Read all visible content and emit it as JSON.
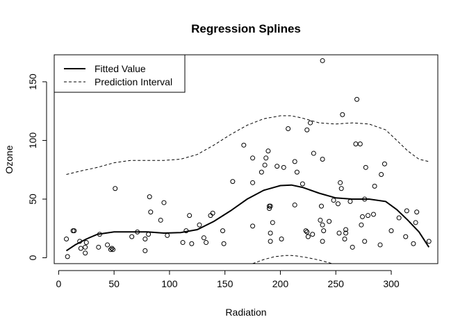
{
  "chart_data": {
    "type": "scatter",
    "title": "Regression Splines",
    "xlabel": "Radiation",
    "ylabel": "Ozone",
    "xlim": [
      -4,
      342
    ],
    "ylim": [
      -5,
      173
    ],
    "x_ticks": [
      0,
      50,
      100,
      150,
      200,
      250,
      300
    ],
    "y_ticks": [
      0,
      50,
      100,
      150
    ],
    "legend": {
      "position": "top-left",
      "entries": [
        {
          "label": "Fitted Value",
          "style": "solid"
        },
        {
          "label": "Prediction Interval",
          "style": "dashed"
        }
      ]
    },
    "points": [
      [
        7,
        16
      ],
      [
        8,
        1
      ],
      [
        13,
        23
      ],
      [
        14,
        23
      ],
      [
        19,
        14
      ],
      [
        20,
        8
      ],
      [
        24,
        9
      ],
      [
        24,
        4
      ],
      [
        25,
        13
      ],
      [
        36,
        9
      ],
      [
        37,
        20
      ],
      [
        44,
        11
      ],
      [
        47,
        7
      ],
      [
        48,
        8
      ],
      [
        49,
        7
      ],
      [
        51,
        59
      ],
      [
        66,
        18
      ],
      [
        71,
        22
      ],
      [
        78,
        16
      ],
      [
        78,
        6
      ],
      [
        81,
        20
      ],
      [
        82,
        52
      ],
      [
        83,
        39
      ],
      [
        92,
        32
      ],
      [
        95,
        47
      ],
      [
        98,
        19
      ],
      [
        112,
        13
      ],
      [
        115,
        23
      ],
      [
        118,
        36
      ],
      [
        120,
        12
      ],
      [
        127,
        28
      ],
      [
        131,
        17
      ],
      [
        133,
        13
      ],
      [
        137,
        36
      ],
      [
        139,
        38
      ],
      [
        148,
        23
      ],
      [
        149,
        12
      ],
      [
        157,
        65
      ],
      [
        167,
        96
      ],
      [
        175,
        64
      ],
      [
        175,
        85
      ],
      [
        175,
        27
      ],
      [
        183,
        73
      ],
      [
        186,
        79
      ],
      [
        187,
        85
      ],
      [
        189,
        91
      ],
      [
        190,
        44
      ],
      [
        190,
        42
      ],
      [
        191,
        44
      ],
      [
        191,
        21
      ],
      [
        191,
        14
      ],
      [
        193,
        30
      ],
      [
        197,
        78
      ],
      [
        201,
        16
      ],
      [
        203,
        77
      ],
      [
        207,
        110
      ],
      [
        213,
        45
      ],
      [
        213,
        82
      ],
      [
        215,
        73
      ],
      [
        220,
        63
      ],
      [
        223,
        23
      ],
      [
        224,
        22
      ],
      [
        225,
        18
      ],
      [
        227,
        115
      ],
      [
        224,
        109
      ],
      [
        229,
        20
      ],
      [
        230,
        89
      ],
      [
        236,
        32
      ],
      [
        237,
        44
      ],
      [
        238,
        84
      ],
      [
        238,
        168
      ],
      [
        238,
        28
      ],
      [
        238,
        14
      ],
      [
        239,
        23
      ],
      [
        244,
        31
      ],
      [
        248,
        49
      ],
      [
        252,
        46
      ],
      [
        253,
        21
      ],
      [
        254,
        64
      ],
      [
        255,
        59
      ],
      [
        256,
        122
      ],
      [
        258,
        16
      ],
      [
        259,
        21
      ],
      [
        259,
        24
      ],
      [
        263,
        48
      ],
      [
        265,
        9
      ],
      [
        268,
        97
      ],
      [
        269,
        135
      ],
      [
        272,
        97
      ],
      [
        273,
        28
      ],
      [
        274,
        35
      ],
      [
        276,
        50
      ],
      [
        276,
        14
      ],
      [
        277,
        77
      ],
      [
        279,
        36
      ],
      [
        284,
        37
      ],
      [
        285,
        61
      ],
      [
        290,
        11
      ],
      [
        291,
        71
      ],
      [
        294,
        80
      ],
      [
        300,
        23
      ],
      [
        307,
        34
      ],
      [
        313,
        18
      ],
      [
        314,
        40
      ],
      [
        320,
        12
      ],
      [
        322,
        30
      ],
      [
        323,
        39
      ],
      [
        334,
        14
      ]
    ],
    "series": [
      {
        "name": "Fitted Value",
        "style": "solid",
        "x": [
          7,
          15,
          25,
          35,
          50,
          65,
          80,
          95,
          110,
          125,
          140,
          155,
          170,
          185,
          200,
          210,
          220,
          235,
          250,
          265,
          280,
          295,
          305,
          315,
          325,
          334
        ],
        "y": [
          6,
          11,
          16,
          20,
          22,
          22,
          22,
          21,
          21.5,
          24,
          31,
          40,
          50,
          57.5,
          61.5,
          62,
          60,
          55,
          51,
          50,
          50,
          48,
          41,
          32,
          22,
          9
        ]
      },
      {
        "x": [
          7,
          20,
          35,
          50,
          65,
          80,
          95,
          110,
          125,
          140,
          155,
          170,
          185,
          200,
          210,
          220,
          235,
          250,
          265,
          280,
          295,
          305,
          315,
          325,
          334
        ],
        "y": [
          71,
          74,
          77,
          81,
          83,
          83,
          83,
          84,
          88,
          96,
          105,
          113,
          118.5,
          121,
          121,
          119,
          115,
          114,
          115,
          114,
          109,
          100,
          91,
          84,
          82
        ]
      },
      {
        "x": [
          175,
          185,
          195,
          205,
          210,
          215,
          225,
          235,
          245,
          250
        ],
        "y": [
          -5,
          -1.5,
          1,
          2,
          2,
          1.5,
          0,
          -2,
          -4.5,
          -6
        ]
      }
    ]
  }
}
